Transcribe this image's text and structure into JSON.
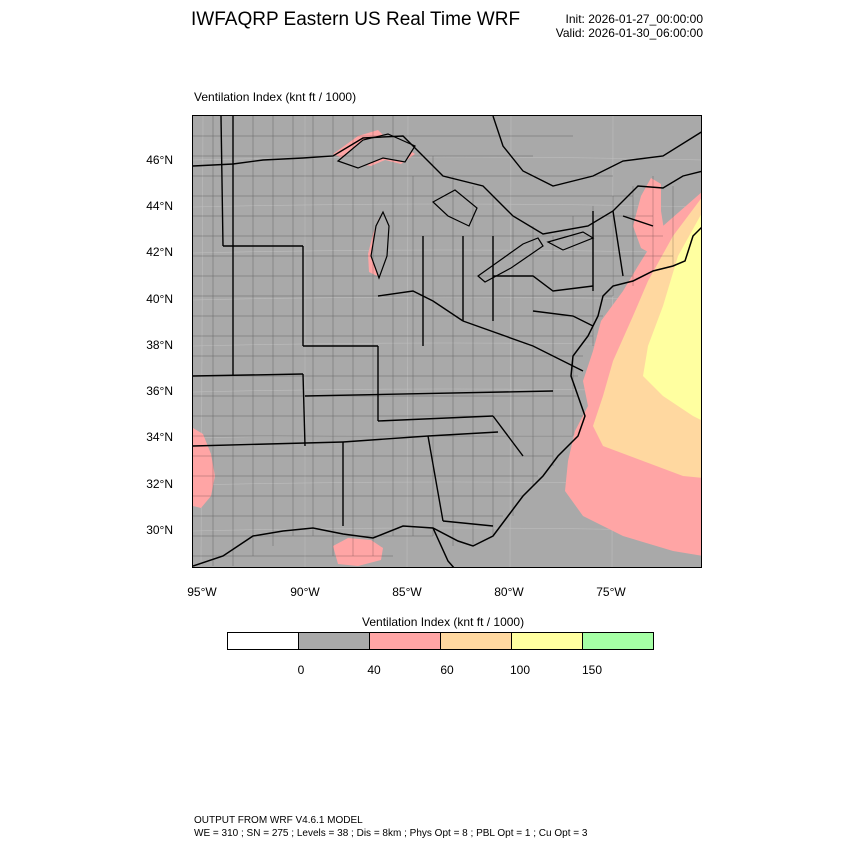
{
  "header": {
    "title": "IWFAQRP Eastern US Real Time WRF",
    "init": "Init: 2026-01-27_00:00:00",
    "valid": "Valid: 2026-01-30_06:00:00"
  },
  "map": {
    "field_title": "Ventilation Index   (knt ft / 1000)",
    "lat_labels": [
      "46°N",
      "44°N",
      "42°N",
      "40°N",
      "38°N",
      "36°N",
      "34°N",
      "32°N",
      "30°N"
    ],
    "lon_labels": [
      "95°W",
      "90°W",
      "85°W",
      "80°W",
      "75°W"
    ],
    "colors": {
      "land": "#a9a9a9",
      "pink": "#ffa5a5",
      "orange": "#ffd8a0",
      "yellow": "#ffffa0"
    }
  },
  "legend": {
    "title": "Ventilation Index  (knt ft / 1000)",
    "colors": [
      "#ffffff",
      "#a9a9a9",
      "#ffa5a5",
      "#ffd8a0",
      "#ffffa0",
      "#a5ffa5"
    ],
    "ticks": [
      "0",
      "40",
      "60",
      "100",
      "150"
    ]
  },
  "footer": {
    "line1": "OUTPUT FROM WRF V4.6.1 MODEL",
    "line2": "WE = 310 ; SN = 275 ; Levels = 38 ; Dis = 8km ; Phys Opt = 8 ; PBL Opt = 1 ; Cu Opt = 3"
  }
}
